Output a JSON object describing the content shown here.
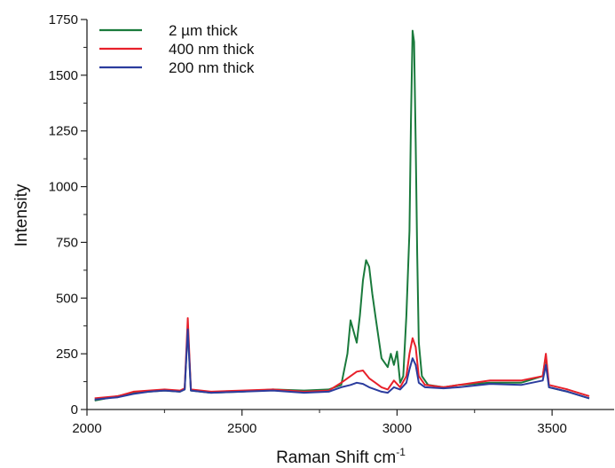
{
  "chart_data": {
    "type": "line",
    "title": "",
    "xlabel": "Raman Shift cm",
    "xlabel_superscript": "-1",
    "ylabel": "Intensity",
    "xlim": [
      2000,
      3700
    ],
    "ylim": [
      0,
      1750
    ],
    "xticks": [
      2000,
      2500,
      3000,
      3500
    ],
    "yticks": [
      0,
      250,
      500,
      750,
      1000,
      1250,
      1500,
      1750
    ],
    "grid": false,
    "legend_position": "top-left",
    "series": [
      {
        "name": "2 µm thick",
        "color": "#1a7a3c",
        "x": [
          2025,
          2100,
          2150,
          2200,
          2250,
          2300,
          2315,
          2325,
          2335,
          2400,
          2500,
          2600,
          2700,
          2780,
          2820,
          2840,
          2850,
          2860,
          2870,
          2880,
          2890,
          2900,
          2910,
          2920,
          2930,
          2950,
          2970,
          2980,
          2990,
          3000,
          3010,
          3020,
          3030,
          3040,
          3045,
          3050,
          3055,
          3060,
          3065,
          3070,
          3080,
          3100,
          3150,
          3200,
          3300,
          3400,
          3470,
          3480,
          3490,
          3550,
          3620
        ],
        "y": [
          40,
          60,
          75,
          80,
          85,
          80,
          90,
          370,
          85,
          75,
          80,
          90,
          85,
          90,
          110,
          250,
          400,
          350,
          300,
          420,
          580,
          670,
          640,
          520,
          420,
          230,
          190,
          250,
          200,
          260,
          120,
          150,
          420,
          800,
          1300,
          1700,
          1650,
          1200,
          700,
          300,
          150,
          110,
          100,
          110,
          120,
          120,
          150,
          240,
          100,
          80,
          50
        ]
      },
      {
        "name": "400 nm thick",
        "color": "#e8202a",
        "x": [
          2025,
          2100,
          2150,
          2200,
          2250,
          2300,
          2315,
          2325,
          2335,
          2400,
          2500,
          2600,
          2700,
          2780,
          2820,
          2850,
          2870,
          2890,
          2910,
          2930,
          2950,
          2970,
          2990,
          3010,
          3030,
          3040,
          3050,
          3060,
          3070,
          3090,
          3150,
          3200,
          3300,
          3400,
          3470,
          3480,
          3490,
          3550,
          3620
        ],
        "y": [
          50,
          60,
          80,
          85,
          90,
          85,
          95,
          410,
          90,
          80,
          85,
          90,
          80,
          85,
          120,
          150,
          170,
          175,
          140,
          120,
          100,
          90,
          130,
          100,
          150,
          250,
          320,
          280,
          150,
          110,
          100,
          110,
          130,
          130,
          150,
          250,
          110,
          90,
          60
        ]
      },
      {
        "name": "200 nm thick",
        "color": "#2b3c9e",
        "x": [
          2025,
          2100,
          2150,
          2200,
          2250,
          2300,
          2315,
          2325,
          2335,
          2400,
          2500,
          2600,
          2700,
          2780,
          2820,
          2850,
          2870,
          2890,
          2910,
          2930,
          2950,
          2970,
          2990,
          3010,
          3030,
          3040,
          3050,
          3060,
          3070,
          3090,
          3150,
          3200,
          3300,
          3400,
          3470,
          3480,
          3490,
          3550,
          3620
        ],
        "y": [
          45,
          55,
          70,
          80,
          85,
          80,
          90,
          360,
          85,
          75,
          80,
          85,
          75,
          80,
          100,
          110,
          120,
          115,
          100,
          90,
          80,
          75,
          100,
          90,
          120,
          180,
          230,
          200,
          120,
          100,
          95,
          100,
          115,
          110,
          130,
          200,
          100,
          80,
          50
        ]
      }
    ]
  }
}
